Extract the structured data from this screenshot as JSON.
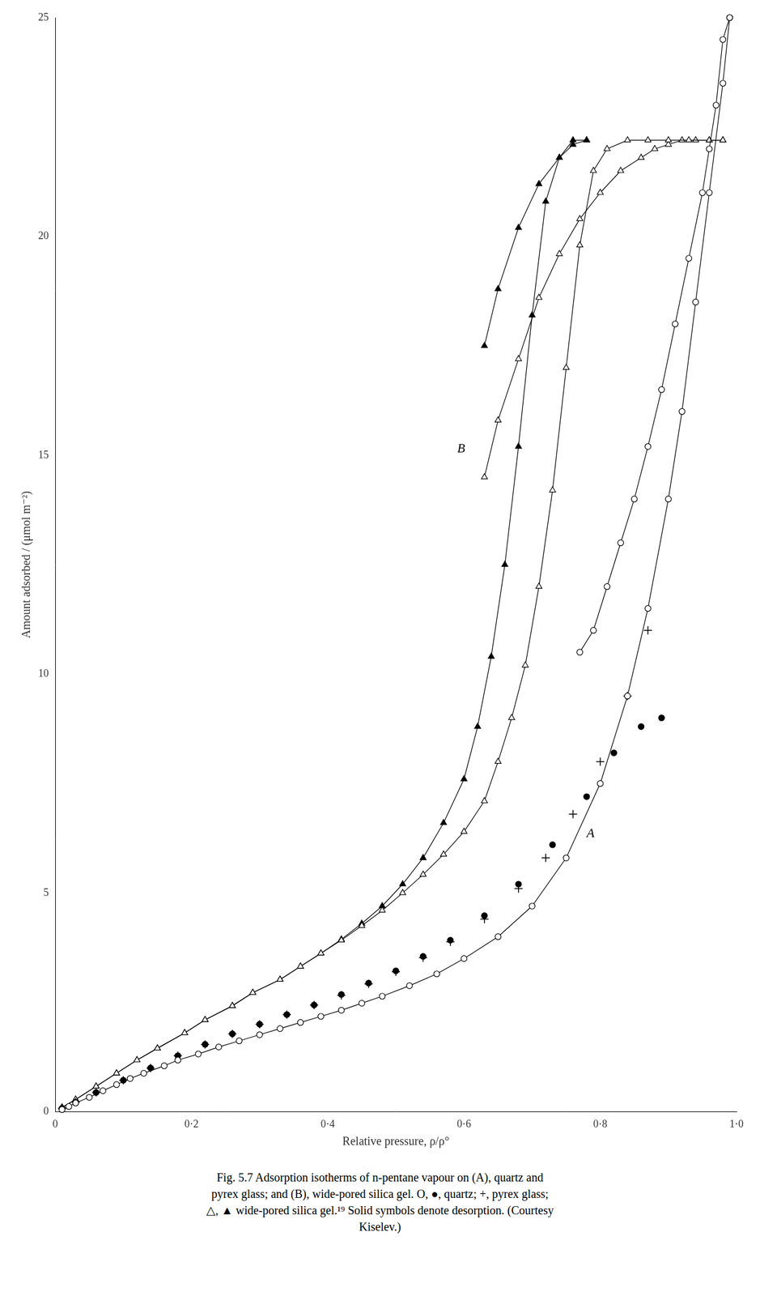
{
  "chart_data": {
    "type": "line",
    "xlabel": "Relative pressure, ρ/ρ°",
    "ylabel": "Amount adsorbed / (μmol m⁻²)",
    "caption": "Fig. 5.7  Adsorption isotherms of n-pentane vapour on (A), quartz and\npyrex glass; and (B), wide-pored silica gel. O, ●, quartz; +, pyrex glass;\n△, ▲ wide-pored silica gel.¹⁹ Solid symbols denote desorption. (Courtesy\nKiselev.)",
    "xlim": [
      0,
      1.0
    ],
    "ylim": [
      0,
      25
    ],
    "xticks": [
      0,
      {
        "value": 0.2,
        "label": "0·2"
      },
      {
        "value": 0.4,
        "label": "0·4"
      },
      {
        "value": 0.6,
        "label": "0·6"
      },
      {
        "value": 0.8,
        "label": "0·8"
      },
      {
        "value": 1.0,
        "label": "1·0"
      }
    ],
    "yticks": [
      0,
      5,
      10,
      15,
      20,
      25
    ],
    "grid": false,
    "annotations": [
      {
        "text": "A",
        "x": 0.78,
        "y": 6.2
      },
      {
        "text": "B",
        "x": 0.59,
        "y": 15.0
      }
    ],
    "series": [
      {
        "color": "#000000",
        "marker": "circle-open",
        "line_style": "solid",
        "x": [
          0.01,
          0.02,
          0.03,
          0.05,
          0.07,
          0.09,
          0.11,
          0.13,
          0.16,
          0.18,
          0.21,
          0.24,
          0.27,
          0.3,
          0.33,
          0.36,
          0.39,
          0.42,
          0.45,
          0.48,
          0.52,
          0.56,
          0.6,
          0.65,
          0.7,
          0.75,
          0.8,
          0.84,
          0.87,
          0.9,
          0.92,
          0.94,
          0.96,
          0.98,
          0.99
        ],
        "values": [
          0.05,
          0.12,
          0.2,
          0.33,
          0.48,
          0.62,
          0.76,
          0.88,
          1.05,
          1.18,
          1.32,
          1.48,
          1.62,
          1.76,
          1.9,
          2.04,
          2.18,
          2.32,
          2.48,
          2.64,
          2.88,
          3.15,
          3.5,
          4.0,
          4.7,
          5.8,
          7.5,
          9.5,
          11.5,
          14.0,
          16.0,
          18.5,
          21.0,
          23.5,
          25.0
        ]
      },
      {
        "color": "#000000",
        "marker": "circle-open",
        "line_style": "solid",
        "x": [
          0.99,
          0.98,
          0.97,
          0.96,
          0.95,
          0.93,
          0.91,
          0.89,
          0.87,
          0.85,
          0.83,
          0.81,
          0.79,
          0.77
        ],
        "values": [
          25.0,
          24.5,
          23.0,
          22.0,
          21.0,
          19.5,
          18.0,
          16.5,
          15.2,
          14.0,
          13.0,
          12.0,
          11.0,
          10.5
        ]
      },
      {
        "color": "#000000",
        "marker": "plus",
        "line_style": "none",
        "x": [
          0.01,
          0.03,
          0.06,
          0.1,
          0.14,
          0.18,
          0.22,
          0.26,
          0.3,
          0.34,
          0.38,
          0.42,
          0.46,
          0.5,
          0.54,
          0.58,
          0.63,
          0.68,
          0.72,
          0.76,
          0.8,
          0.84,
          0.87
        ],
        "values": [
          0.08,
          0.22,
          0.44,
          0.72,
          1.0,
          1.28,
          1.54,
          1.78,
          2.0,
          2.22,
          2.44,
          2.66,
          2.92,
          3.2,
          3.52,
          3.88,
          4.4,
          5.1,
          5.8,
          6.8,
          8.0,
          9.5,
          11.0
        ]
      },
      {
        "color": "#000000",
        "marker": "circle",
        "line_style": "none",
        "x": [
          0.01,
          0.03,
          0.06,
          0.1,
          0.14,
          0.18,
          0.22,
          0.26,
          0.3,
          0.34,
          0.38,
          0.42,
          0.46,
          0.5,
          0.54,
          0.58,
          0.63,
          0.68,
          0.73,
          0.78,
          0.82,
          0.86,
          0.89
        ],
        "values": [
          0.08,
          0.22,
          0.44,
          0.72,
          1.0,
          1.28,
          1.54,
          1.78,
          2.0,
          2.22,
          2.44,
          2.68,
          2.94,
          3.22,
          3.55,
          3.92,
          4.48,
          5.2,
          6.1,
          7.2,
          8.2,
          8.8,
          9.0
        ]
      },
      {
        "color": "#000000",
        "marker": "triangle-open",
        "line_style": "solid",
        "x": [
          0.01,
          0.03,
          0.06,
          0.09,
          0.12,
          0.15,
          0.19,
          0.22,
          0.26,
          0.29,
          0.33,
          0.36,
          0.39,
          0.42,
          0.45,
          0.48,
          0.51,
          0.54,
          0.57,
          0.6,
          0.63,
          0.65,
          0.67,
          0.69,
          0.71,
          0.73,
          0.75,
          0.77,
          0.79,
          0.81,
          0.84,
          0.87,
          0.9,
          0.93,
          0.96,
          0.98
        ],
        "values": [
          0.1,
          0.28,
          0.58,
          0.88,
          1.18,
          1.45,
          1.8,
          2.1,
          2.42,
          2.72,
          3.02,
          3.32,
          3.62,
          3.92,
          4.25,
          4.6,
          5.0,
          5.42,
          5.88,
          6.4,
          7.1,
          8.0,
          9.0,
          10.2,
          12.0,
          14.2,
          17.0,
          19.8,
          21.5,
          22.0,
          22.2,
          22.2,
          22.2,
          22.2,
          22.2,
          22.2
        ]
      },
      {
        "color": "#000000",
        "marker": "triangle-open",
        "line_style": "solid",
        "x": [
          0.98,
          0.96,
          0.94,
          0.92,
          0.9,
          0.88,
          0.86,
          0.83,
          0.8,
          0.77,
          0.74,
          0.71,
          0.68,
          0.65,
          0.63
        ],
        "values": [
          22.2,
          22.2,
          22.2,
          22.2,
          22.1,
          22.0,
          21.8,
          21.5,
          21.0,
          20.4,
          19.6,
          18.6,
          17.2,
          15.8,
          14.5
        ]
      },
      {
        "color": "#000000",
        "marker": "triangle",
        "line_style": "solid",
        "x": [
          0.01,
          0.03,
          0.06,
          0.09,
          0.12,
          0.15,
          0.19,
          0.22,
          0.26,
          0.29,
          0.33,
          0.36,
          0.39,
          0.42,
          0.45,
          0.48,
          0.51,
          0.54,
          0.57,
          0.6,
          0.62,
          0.64,
          0.66,
          0.68,
          0.7,
          0.72,
          0.74,
          0.76,
          0.78
        ],
        "values": [
          0.1,
          0.28,
          0.58,
          0.88,
          1.18,
          1.45,
          1.8,
          2.1,
          2.42,
          2.72,
          3.02,
          3.32,
          3.62,
          3.94,
          4.3,
          4.7,
          5.2,
          5.8,
          6.6,
          7.6,
          8.8,
          10.4,
          12.5,
          15.2,
          18.2,
          20.8,
          21.8,
          22.2,
          22.2
        ]
      },
      {
        "color": "#000000",
        "marker": "triangle",
        "line_style": "solid",
        "x": [
          0.78,
          0.76,
          0.74,
          0.71,
          0.68,
          0.65,
          0.63
        ],
        "values": [
          22.2,
          22.1,
          21.8,
          21.2,
          20.2,
          18.8,
          17.5
        ]
      }
    ]
  }
}
